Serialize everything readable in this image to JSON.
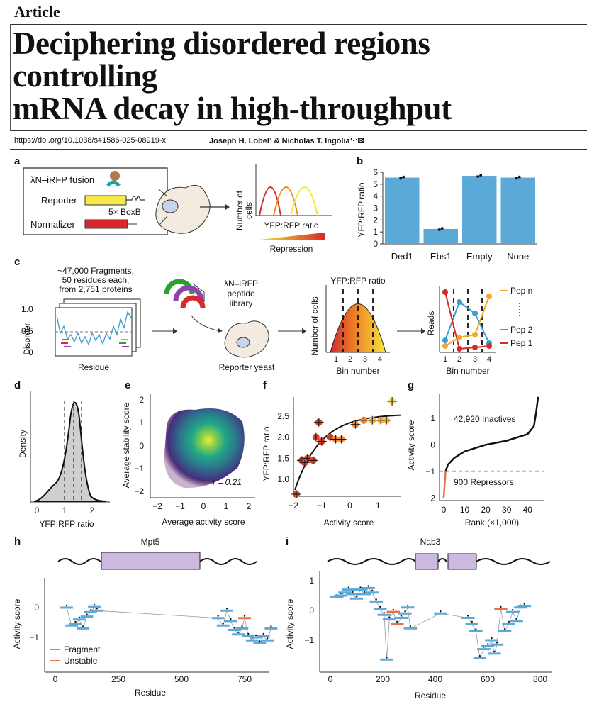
{
  "header": {
    "article_label": "Article",
    "title_line1": "Deciphering disordered regions controlling",
    "title_line2": "mRNA decay in high-throughput",
    "doi": "https://doi.org/10.1038/s41586-025-08919-x",
    "authors": "Joseph H. Lobel¹ & Nicholas T. Ingolia¹·²✉"
  },
  "panels": {
    "a": {
      "letter": "a",
      "fusion": "λN–iRFP fusion",
      "reporter": "Reporter",
      "boxb": "5× BoxB",
      "normalizer": "Normalizer",
      "ylabel_1": "Number of",
      "ylabel_2": "cells",
      "xlabel": "YFP:RFP ratio",
      "repression": "Repression"
    },
    "b": {
      "letter": "b",
      "ylabel": "YFP:RFP ratio"
    },
    "c": {
      "letter": "c",
      "frag_1": "~47,000 Fragments,",
      "frag_2": "50 residues each,",
      "frag_3": "from 2,751 proteins",
      "disorder": "Disorder",
      "residue": "Residue",
      "lib_1": "λN–iRFP",
      "lib_2": "peptide",
      "lib_3": "library",
      "yeast": "Reporter yeast",
      "ratio": "YFP:RFP ratio",
      "cells": "Number of cells",
      "bin": "Bin number",
      "reads": "Reads",
      "pep_n": "Pep n",
      "pep_2": "Pep 2",
      "pep_1": "Pep 1",
      "yticks": [
        "1.0",
        "0.5",
        "0"
      ],
      "bin_ticks": [
        "1",
        "2",
        "3",
        "4"
      ]
    },
    "d": {
      "letter": "d",
      "ylabel": "Density",
      "xlabel": "YFP:RFP ratio",
      "xticks": [
        "0",
        "1",
        "2"
      ]
    },
    "e": {
      "letter": "e",
      "ylabel": "Average stability score",
      "xlabel": "Average activity score",
      "r": "r = 0.21",
      "ticks": [
        "−2",
        "−1",
        "0",
        "1",
        "2"
      ]
    },
    "f": {
      "letter": "f",
      "ylabel": "YFP:RFP ratio",
      "xlabel": "Activity score",
      "xticks": [
        "−2",
        "−1",
        "0",
        "1"
      ],
      "yticks": [
        "1.0",
        "1.5",
        "2.0",
        "2.5"
      ]
    },
    "g": {
      "letter": "g",
      "ylabel": "Activity score",
      "xlabel": "Rank (×1,000)",
      "inactives": "42,920 Inactives",
      "repressors": "900 Repressors",
      "xticks": [
        "0",
        "10",
        "20",
        "30",
        "40"
      ],
      "yticks": [
        "1",
        "0",
        "−1",
        "−2"
      ]
    },
    "h": {
      "letter": "h",
      "protein": "Mpt5",
      "ylabel": "Activity score",
      "xlabel": "Residue",
      "legend_fragment": "Fragment",
      "legend_unstable": "Unstable",
      "xticks": [
        "0",
        "250",
        "500",
        "750"
      ],
      "yticks": [
        "0",
        "−1"
      ]
    },
    "i": {
      "letter": "i",
      "protein": "Nab3",
      "ylabel": "Activity score",
      "xlabel": "Residue",
      "xticks": [
        "0",
        "200",
        "400",
        "600",
        "800"
      ],
      "yticks": [
        "1",
        "0",
        "−1"
      ]
    }
  },
  "colors": {
    "blue": "#5ba9d6",
    "orange": "#e8704a",
    "lavender": "#cdb8e0",
    "red": "#d62b2b",
    "yellow": "#f5e63a"
  },
  "chart_data": [
    {
      "type": "bar",
      "panel": "b",
      "categories": [
        "Ded1",
        "Ebs1",
        "Empty",
        "None"
      ],
      "values": [
        5.55,
        1.25,
        5.7,
        5.55
      ],
      "ylabel": "YFP:RFP ratio",
      "ylim": [
        0,
        6
      ],
      "yticks": [
        "0",
        "1",
        "2",
        "3",
        "4",
        "5",
        "6"
      ]
    },
    {
      "type": "scatter",
      "panel": "f",
      "x": [
        -1.9,
        -1.7,
        -1.6,
        -1.5,
        -1.3,
        -1.2,
        -1.1,
        -1.0,
        -0.7,
        -0.5,
        -0.3,
        0.2,
        0.5,
        0.8,
        1.1,
        1.3,
        1.5
      ],
      "y": [
        0.65,
        1.45,
        1.4,
        1.5,
        1.45,
        2.0,
        2.35,
        1.9,
        2.0,
        1.95,
        1.95,
        2.3,
        2.4,
        2.4,
        2.4,
        2.4,
        2.85
      ],
      "xlabel": "Activity score",
      "ylabel": "YFP:RFP ratio",
      "xlim": [
        -2,
        1.8
      ],
      "ylim": [
        0.6,
        2.95
      ]
    },
    {
      "type": "line",
      "panel": "g",
      "x": [
        0,
        0.9,
        2,
        5,
        10,
        20,
        30,
        40,
        43,
        44,
        45
      ],
      "y": [
        -2.0,
        -1.0,
        -0.75,
        -0.5,
        -0.25,
        0,
        0.15,
        0.4,
        0.7,
        1.2,
        1.8
      ],
      "xlabel": "Rank (×1,000)",
      "ylabel": "Activity score",
      "xlim": [
        -2,
        48
      ],
      "ylim": [
        -2.1,
        1.9
      ],
      "threshold": -1.0
    }
  ]
}
